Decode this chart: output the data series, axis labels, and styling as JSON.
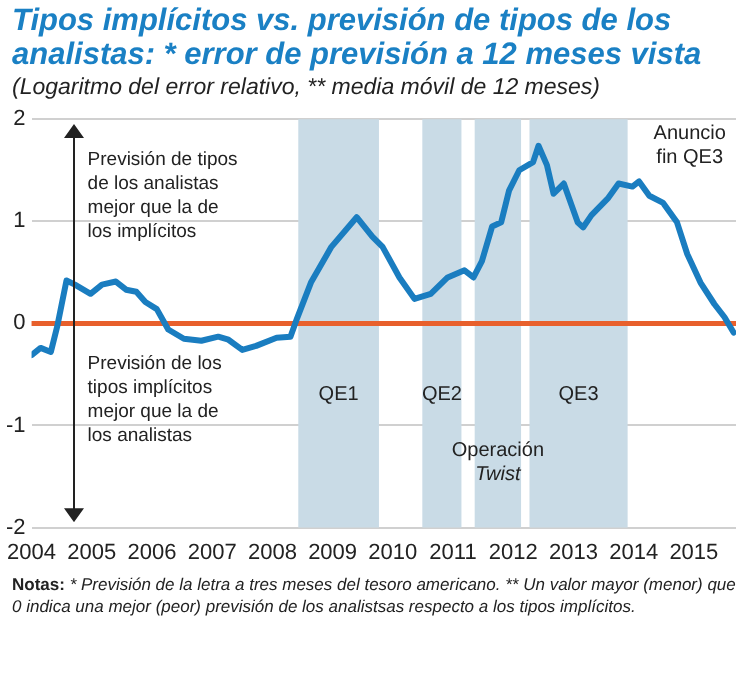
{
  "chart_data": {
    "type": "line",
    "title": "Tipos implícitos vs. previsión de tipos de los analistas: * error de previsión a 12 meses vista",
    "subtitle": "(Logaritmo del error relativo, ** media móvil de 12 meses)",
    "series": [
      {
        "color": "#1a7dc0",
        "x": [
          2004.0,
          2004.15,
          2004.32,
          2004.43,
          2004.58,
          2004.72,
          2004.98,
          2005.17,
          2005.4,
          2005.57,
          2005.74,
          2005.89,
          2006.08,
          2006.27,
          2006.53,
          2006.82,
          2007.1,
          2007.27,
          2007.5,
          2007.73,
          2008.07,
          2008.3,
          2008.41,
          2008.64,
          2008.98,
          2009.4,
          2009.66,
          2009.83,
          2010.11,
          2010.36,
          2010.63,
          2010.91,
          2011.19,
          2011.34,
          2011.48,
          2011.65,
          2011.8,
          2011.93,
          2012.1,
          2012.33,
          2012.42,
          2012.56,
          2012.67,
          2012.84,
          2013.07,
          2013.16,
          2013.3,
          2013.58,
          2013.75,
          2013.98,
          2014.09,
          2014.26,
          2014.49,
          2014.72,
          2014.89,
          2015.11,
          2015.34,
          2015.51,
          2015.66
        ],
        "values": [
          -0.31,
          -0.24,
          -0.28,
          -0.02,
          0.42,
          0.38,
          0.29,
          0.38,
          0.41,
          0.33,
          0.31,
          0.21,
          0.14,
          -0.06,
          -0.15,
          -0.17,
          -0.13,
          -0.16,
          -0.26,
          -0.22,
          -0.14,
          -0.13,
          0.05,
          0.4,
          0.75,
          1.04,
          0.85,
          0.75,
          0.45,
          0.24,
          0.29,
          0.45,
          0.52,
          0.45,
          0.61,
          0.95,
          0.99,
          1.3,
          1.5,
          1.58,
          1.74,
          1.55,
          1.27,
          1.37,
          0.99,
          0.94,
          1.06,
          1.23,
          1.37,
          1.34,
          1.39,
          1.25,
          1.18,
          0.99,
          0.68,
          0.4,
          0.19,
          0.06,
          -0.09
        ]
      }
    ],
    "xlim": [
      2004,
      2015.7
    ],
    "xticks": [
      2004,
      2005,
      2006,
      2007,
      2008,
      2009,
      2010,
      2011,
      2012,
      2013,
      2014,
      2015
    ],
    "ylim": [
      -2,
      2
    ],
    "yticks": [
      -2,
      -1,
      0,
      1,
      2
    ],
    "grid": "y",
    "legend": false,
    "ref_lines": [
      {
        "axis": "y",
        "value": 0,
        "color": "#e8602c"
      }
    ],
    "bands": [
      {
        "axis": "x",
        "from": 2008.43,
        "to": 2009.77,
        "label": "QE1",
        "color": "#c9dbe6"
      },
      {
        "axis": "x",
        "from": 2010.49,
        "to": 2011.14,
        "label": "QE2",
        "color": "#c9dbe6"
      },
      {
        "axis": "x",
        "from": 2011.36,
        "to": 2012.13,
        "label": "Operación Twist",
        "color": "#c9dbe6"
      },
      {
        "axis": "x",
        "from": 2012.27,
        "to": 2013.9,
        "label": "QE3",
        "color": "#c9dbe6"
      }
    ],
    "annotations": [
      "Previsión de tipos de los analistas mejor que la de los implícitos",
      "Previsión de los tipos implícitos mejor que la de los analistas",
      {
        "text": "Anuncio fin QE3",
        "x": 2014.1,
        "y": 1.39
      },
      "Notas: * Previsión de la letra a tres meses del tesoro americano. ** Un valor mayor (menor) que 0 indica una mejor (peor) previsión de los analistsas respecto a los tipos implícitos."
    ]
  }
}
